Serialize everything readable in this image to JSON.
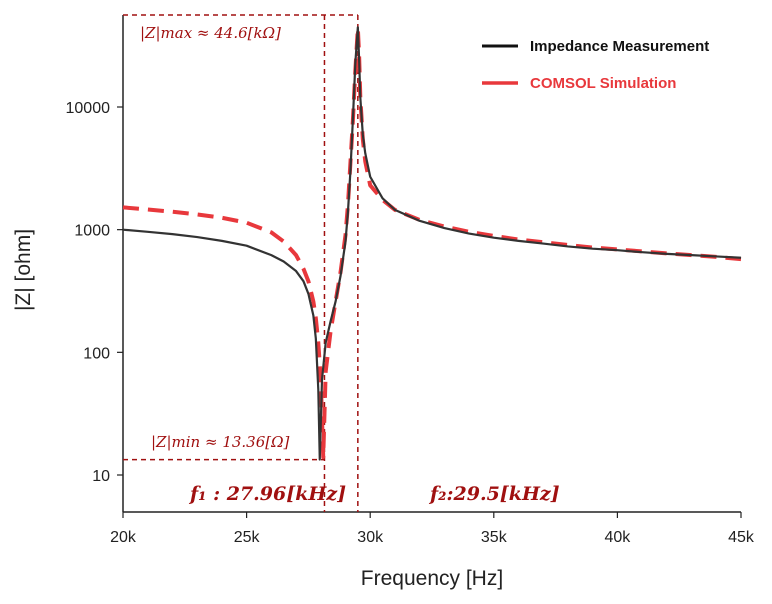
{
  "chart_data": {
    "type": "line",
    "xlabel": "Frequency [Hz]",
    "ylabel": "|Z| [ohm]",
    "xlim": [
      20000,
      45000
    ],
    "ylim": [
      5,
      60000
    ],
    "yscale": "log",
    "grid": false,
    "legend_position": "top-right",
    "x_ticks": [
      20000,
      25000,
      30000,
      35000,
      40000,
      45000
    ],
    "x_tick_labels": [
      "20k",
      "25k",
      "30k",
      "35k",
      "40k",
      "45k"
    ],
    "y_ticks": [
      10,
      100,
      1000,
      10000
    ],
    "y_tick_labels": [
      "10",
      "100",
      "1000",
      "10000"
    ],
    "series": [
      {
        "name": "Impedance Measurement",
        "color": "#333333",
        "style": "solid",
        "x": [
          20000,
          21000,
          22000,
          23000,
          24000,
          25000,
          26000,
          26500,
          27000,
          27300,
          27500,
          27700,
          27800,
          27900,
          27960,
          28050,
          28200,
          28400,
          28600,
          28800,
          29000,
          29100,
          29200,
          29300,
          29400,
          29500,
          29550,
          29600,
          29700,
          29800,
          30000,
          30500,
          31000,
          32000,
          33000,
          34000,
          35000,
          36000,
          37000,
          38000,
          39000,
          40000,
          41000,
          42000,
          43000,
          44000,
          45000
        ],
        "y": [
          1000,
          960,
          920,
          870,
          810,
          740,
          620,
          550,
          460,
          380,
          300,
          200,
          130,
          50,
          13.36,
          60,
          120,
          180,
          260,
          420,
          800,
          1400,
          3000,
          8000,
          23000,
          44600,
          25000,
          12000,
          6000,
          4200,
          2700,
          1800,
          1450,
          1180,
          1030,
          930,
          860,
          810,
          770,
          730,
          700,
          680,
          655,
          635,
          620,
          605,
          590
        ]
      },
      {
        "name": "COMSOL Simulation",
        "color": "#e8383c",
        "style": "dashed",
        "x": [
          20000,
          21000,
          22000,
          23000,
          24000,
          25000,
          26000,
          26500,
          27000,
          27300,
          27500,
          27700,
          27800,
          27900,
          28000,
          28100,
          28200,
          28400,
          28600,
          28800,
          29000,
          29100,
          29200,
          29300,
          29400,
          29500,
          29550,
          29600,
          29700,
          29800,
          30000,
          30500,
          31000,
          32000,
          33000,
          34000,
          35000,
          36000,
          37000,
          38000,
          39000,
          40000,
          41000,
          42000,
          43000,
          44000,
          45000
        ],
        "y": [
          1520,
          1460,
          1400,
          1330,
          1250,
          1140,
          950,
          800,
          620,
          480,
          380,
          260,
          190,
          120,
          60,
          14,
          70,
          150,
          260,
          450,
          900,
          1600,
          3500,
          7800,
          20000,
          44000,
          27000,
          12000,
          5500,
          3600,
          2300,
          1750,
          1450,
          1200,
          1060,
          960,
          890,
          830,
          790,
          750,
          715,
          690,
          665,
          640,
          620,
          600,
          575
        ]
      }
    ],
    "guides": [
      {
        "axis": "x",
        "value": 28150,
        "color": "#a01010",
        "style": "dashed"
      },
      {
        "axis": "x",
        "value": 29500,
        "color": "#a01010",
        "style": "dashed"
      },
      {
        "axis": "y",
        "value": 13.36,
        "color": "#a01010",
        "style": "dashed"
      },
      {
        "axis": "y",
        "value": 60000,
        "color": "#a01010",
        "style": "dashed"
      }
    ],
    "annotations": {
      "zmax": "|Z|max ≈ 44.6[kΩ]",
      "zmin": "|Z|min ≈ 13.36[Ω]",
      "f1": "f₁ : 27.96[kHz]",
      "f2": "f₂:29.5[kHz]"
    }
  }
}
